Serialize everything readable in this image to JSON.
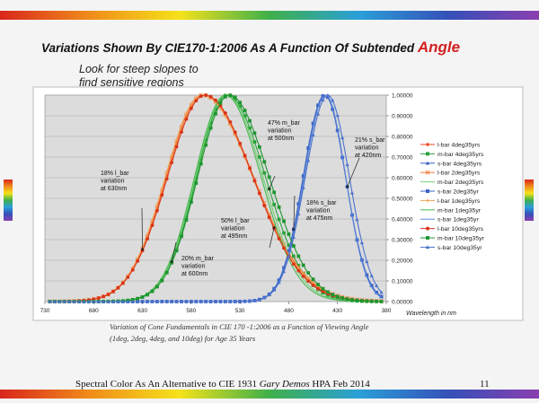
{
  "slide": {
    "title_main": "Variations Shown By CIE170-1:2006 As A Function Of Subtended ",
    "title_emph": "Angle",
    "subtitle_line1": "Look for steep slopes to",
    "subtitle_line2": "find sensitive regions",
    "caption_line1": "Variation of Cone Fundamentals in CIE 170   -1:2006 as a Function of Viewing Angle",
    "caption_line2": "(1deg, 2deg, 4deg, and 10deg) for Age 35 Years",
    "footer_pre": "Spectral Color As An Alternative to CIE 1931 ",
    "footer_author": "Gary Demos",
    "footer_post": "  HPA Feb 2014",
    "page_number": "11",
    "colors": {
      "title_emph": "#d42020"
    }
  },
  "chart_data": {
    "type": "line",
    "x_axis": {
      "label": "Wavelength in nm",
      "range": [
        730,
        380
      ],
      "reversed": true,
      "ticks": [
        "730",
        "680",
        "630",
        "580",
        "530",
        "480",
        "430",
        "380"
      ]
    },
    "y_axis": {
      "position": "right",
      "range": [
        0,
        1
      ],
      "ticks": [
        "0.00000",
        "0.10000",
        "0.20000",
        "0.30000",
        "0.40000",
        "0.50000",
        "0.60000",
        "0.70000",
        "0.80000",
        "0.90000",
        "1.00000"
      ]
    },
    "grid": true,
    "legend_position": "right",
    "series": [
      {
        "name": "l-bar 4deg35yrs",
        "family": "l",
        "color": "#e8491f",
        "marker": "diamond",
        "peak": 568,
        "w_long": 44,
        "w_short": 60
      },
      {
        "name": "m-bar 4deg35yrs",
        "family": "m",
        "color": "#2aa23a",
        "marker": "square",
        "peak": 543,
        "w_long": 37,
        "w_short": 46
      },
      {
        "name": "s-bar 4deg35yrs",
        "family": "s",
        "color": "#3a5fc4",
        "marker": "triangle",
        "peak": 443,
        "w_long": 26,
        "w_short": 25
      },
      {
        "name": "l-bar 2deg35yrs",
        "family": "l",
        "color": "#f07a3a",
        "marker": "x",
        "peak": 568,
        "w_long": 44,
        "w_short": 61
      },
      {
        "name": "m-bar 2deg35yrs",
        "family": "m",
        "color": "#6fd070",
        "marker": "none",
        "peak": 544,
        "w_long": 37,
        "w_short": 44
      },
      {
        "name": "s-bar 2deg35yr",
        "family": "s",
        "color": "#3a66c8",
        "marker": "square",
        "peak": 443,
        "w_long": 26,
        "w_short": 25
      },
      {
        "name": "l-bar 1deg35yrs",
        "family": "l",
        "color": "#f2a055",
        "marker": "plus",
        "peak": 569,
        "w_long": 44,
        "w_short": 61
      },
      {
        "name": "m-bar 1deg35yr",
        "family": "m",
        "color": "#48b850",
        "marker": "none",
        "peak": 545,
        "w_long": 37,
        "w_short": 43
      },
      {
        "name": "s-bar 1deg35yr",
        "family": "s",
        "color": "#5c86d8",
        "marker": "none",
        "peak": 442,
        "w_long": 26,
        "w_short": 24
      },
      {
        "name": "l-bar 10deg35yrs",
        "family": "l",
        "color": "#d83418",
        "marker": "circle",
        "peak": 566,
        "w_long": 45,
        "w_short": 58
      },
      {
        "name": "m-bar 10deg35yr",
        "family": "m",
        "color": "#1e9630",
        "marker": "square",
        "peak": 541,
        "w_long": 38,
        "w_short": 48
      },
      {
        "name": "s-bar 10deg35yr",
        "family": "s",
        "color": "#4a72cc",
        "marker": "triangle",
        "peak": 440,
        "w_long": 27,
        "w_short": 26
      }
    ],
    "annotations": [
      {
        "id": "l630",
        "lines": [
          "18% l_bar",
          "variation",
          "at 630nm"
        ]
      },
      {
        "id": "m600",
        "lines": [
          "20% m_bar",
          "variation",
          "at 600nm"
        ]
      },
      {
        "id": "l495",
        "lines": [
          "50% l_bar",
          "variation",
          "at 495nm"
        ]
      },
      {
        "id": "m500",
        "lines": [
          "47% m_bar",
          "variation",
          "at 500nm"
        ]
      },
      {
        "id": "s475",
        "lines": [
          "18% s_bar",
          "variation",
          "at 475nm"
        ]
      },
      {
        "id": "s420",
        "lines": [
          "21% s_bar",
          "variation",
          "at 420nm"
        ]
      }
    ]
  }
}
